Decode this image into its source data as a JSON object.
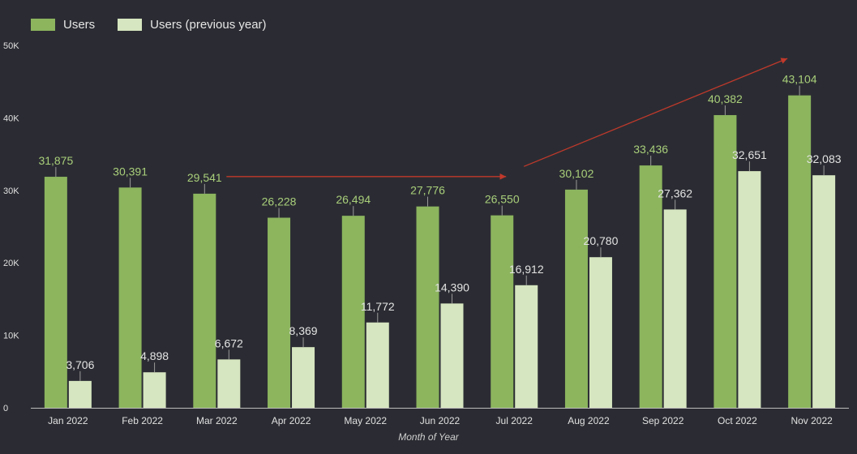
{
  "chart_data": {
    "type": "bar",
    "categories": [
      "Jan 2022",
      "Feb 2022",
      "Mar 2022",
      "Apr 2022",
      "May 2022",
      "Jun 2022",
      "Jul 2022",
      "Aug 2022",
      "Sep 2022",
      "Oct 2022",
      "Nov 2022"
    ],
    "series": [
      {
        "name": "Users",
        "color": "#8cb55e",
        "label_color": "#a9cf7a",
        "values": [
          31875,
          30391,
          29541,
          26228,
          26494,
          27776,
          26550,
          30102,
          33436,
          40382,
          43104
        ]
      },
      {
        "name": "Users (previous year)",
        "color": "#d6e6c0",
        "label_color": "#e3e3e3",
        "values": [
          3706,
          4898,
          6672,
          8369,
          11772,
          14390,
          16912,
          20780,
          27362,
          32651,
          32083
        ]
      }
    ],
    "ylim": [
      0,
      50000
    ],
    "yticks": [
      0,
      10000,
      20000,
      30000,
      40000,
      50000
    ],
    "ytick_labels": [
      "0",
      "10K",
      "20K",
      "30K",
      "40K",
      "50K"
    ],
    "xlabel": "Month of Year",
    "ylabel": "",
    "legend_position": "top-left",
    "grid": false,
    "annotations": [
      {
        "type": "arrow",
        "color": "#c0392b",
        "from": {
          "x": "Mar 2022",
          "y": 31900
        },
        "to": {
          "x": "Jul 2022",
          "y": 31900
        }
      },
      {
        "type": "arrow",
        "color": "#c0392b",
        "from": {
          "x": "Jul 2022",
          "y": 33300
        },
        "to": {
          "x": "Nov 2022",
          "y": 48200
        }
      }
    ]
  }
}
